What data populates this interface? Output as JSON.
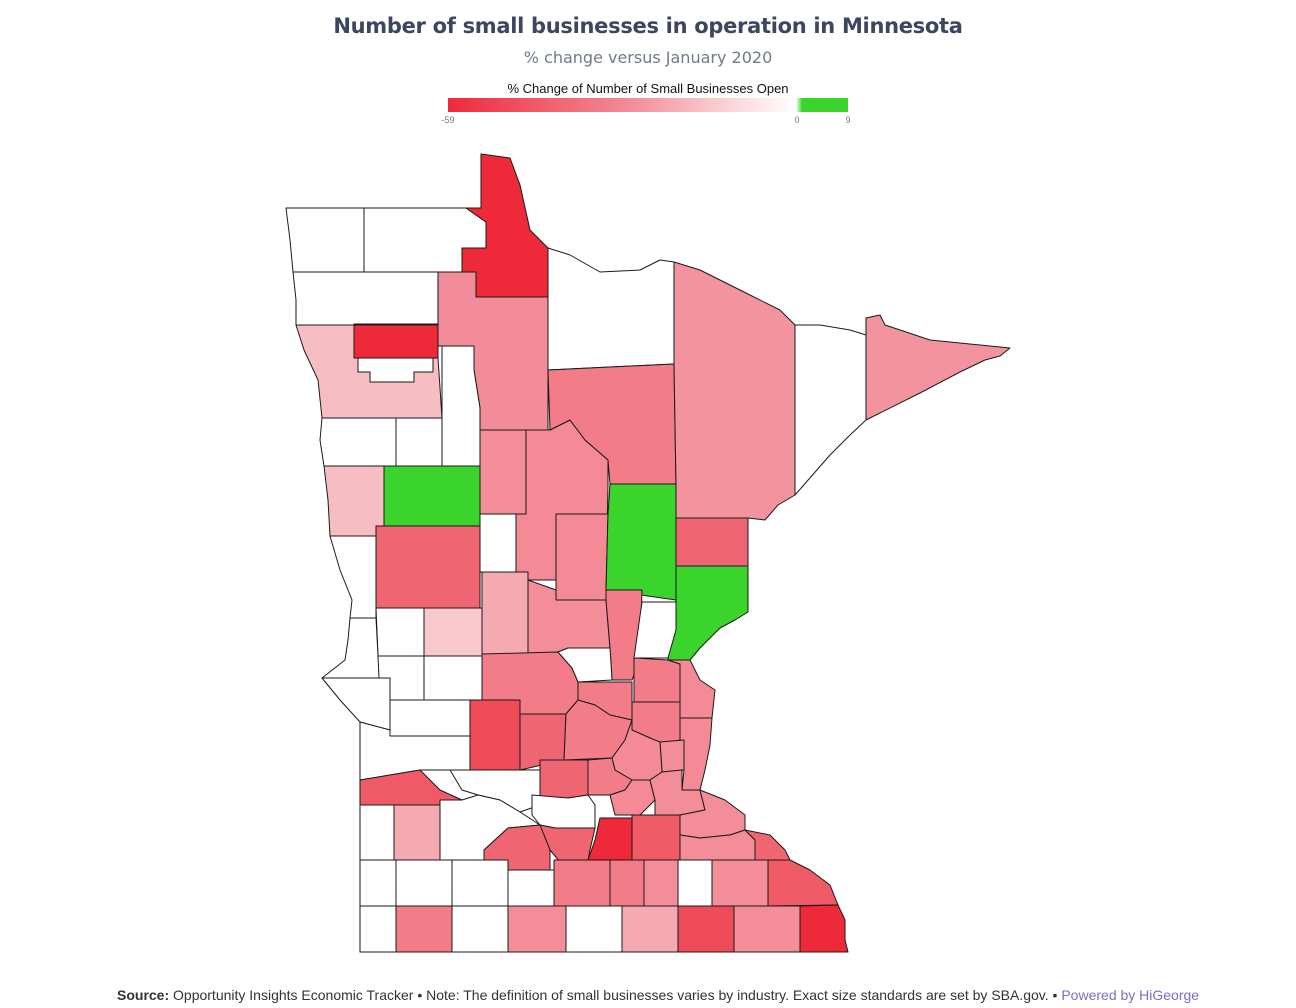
{
  "title": "Number of small businesses in operation in Minnesota",
  "subtitle": "% change versus January 2020",
  "legend": {
    "title": "% Change of Number of Small Businesses Open",
    "min_label": "-59",
    "zero_label": "0",
    "max_label": "9",
    "colors": {
      "most_negative": "#ee2a3a",
      "mid_negative": "#f38a96",
      "light_negative": "#fbd9dd",
      "zero": "#ffffff",
      "positive": "#3bd42c"
    }
  },
  "footer": {
    "source_label": "Source:",
    "source_text": "Opportunity Insights Economic Tracker • Note: The definition of small businesses varies by industry. Exact size standards are set by SBA.gov. •",
    "powered_by": "Powered by HiGeorge"
  }
}
